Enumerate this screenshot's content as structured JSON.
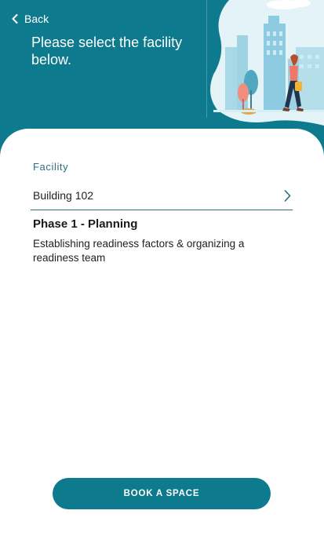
{
  "header": {
    "back_label": "Back",
    "title": "Please select the facility below."
  },
  "form": {
    "facility_label": "Facility",
    "facility_value": "Building 102"
  },
  "phase": {
    "title": "Phase 1 - Planning",
    "description": "Establishing readiness factors & organizing a readiness team"
  },
  "actions": {
    "book_label": "BOOK A SPACE"
  },
  "colors": {
    "primary": "#0e7a8e",
    "label": "#2b6f7f"
  },
  "icons": {
    "back": "chevron-left-icon",
    "select": "chevron-right-icon"
  }
}
